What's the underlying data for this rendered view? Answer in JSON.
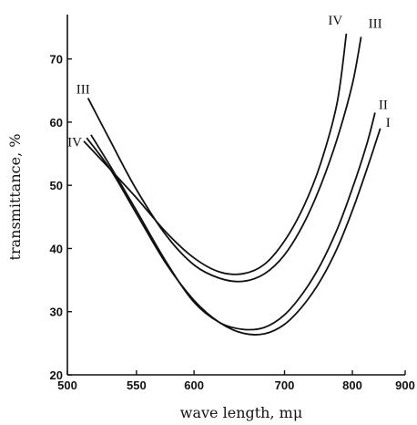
{
  "chart_data": {
    "type": "line",
    "title": "",
    "xlabel": "wave length, mμ",
    "ylabel": "transmittance, %",
    "x_scale": "reciprocal",
    "xlim": [
      500,
      900
    ],
    "ylim": [
      20,
      75
    ],
    "x_ticks": [
      500,
      550,
      600,
      700,
      800,
      900
    ],
    "x_tick_labels": [
      "500",
      "550",
      "600",
      "700",
      "800",
      "900"
    ],
    "y_ticks": [
      20,
      30,
      40,
      50,
      60,
      70
    ],
    "y_tick_labels": [
      "20",
      "30",
      "40",
      "50",
      "60",
      "70"
    ],
    "grid": false,
    "legend": "none",
    "series": [
      {
        "name": "I",
        "label_position": "end",
        "x": [
          513,
          530,
          550,
          575,
          600,
          625,
          650,
          675,
          700,
          725,
          750,
          775,
          800,
          825,
          850
        ],
        "y": [
          57.5,
          52.5,
          45.5,
          37.5,
          31.8,
          28.3,
          26.6,
          26.5,
          28,
          31,
          35,
          40,
          46,
          52.5,
          59
        ]
      },
      {
        "name": "II",
        "label_position": "end",
        "x": [
          516,
          530,
          550,
          575,
          600,
          625,
          650,
          675,
          700,
          725,
          750,
          775,
          800,
          825,
          840
        ],
        "y": [
          58,
          53,
          46,
          37.8,
          31.5,
          28.3,
          27.2,
          27.5,
          29.5,
          33,
          37.5,
          43,
          49.5,
          56.5,
          61.5
        ]
      },
      {
        "name": "III",
        "label_position": "start",
        "x": [
          514,
          530,
          550,
          575,
          600,
          625,
          650,
          675,
          700,
          725,
          750,
          775,
          800,
          815
        ],
        "y": [
          63.8,
          57,
          49.3,
          42,
          37.4,
          35.3,
          34.8,
          36,
          39,
          43.8,
          50,
          57.3,
          66,
          73.5
        ]
      },
      {
        "name": "III",
        "label_position": "end",
        "x": [],
        "y": []
      },
      {
        "name": "IV",
        "label_position": "start",
        "x": [
          511,
          530,
          550,
          575,
          600,
          625,
          650,
          675,
          700,
          725,
          750,
          775,
          790
        ],
        "y": [
          57,
          52.5,
          48,
          42.5,
          38.5,
          36.3,
          36,
          37.5,
          41.2,
          46.5,
          53.5,
          63,
          74
        ]
      },
      {
        "name": "IV",
        "label_position": "end",
        "x": [],
        "y": []
      }
    ]
  }
}
